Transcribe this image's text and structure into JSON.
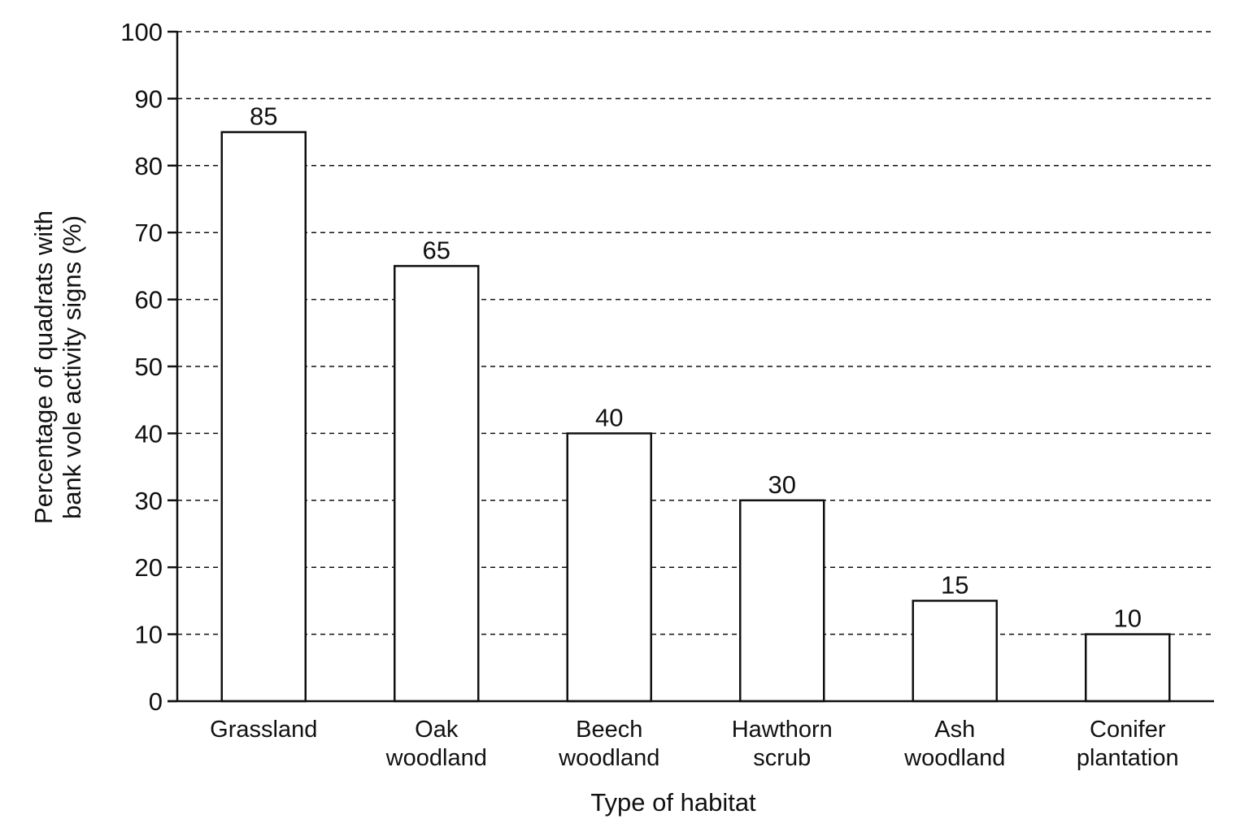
{
  "chart_data": {
    "type": "bar",
    "categories": [
      [
        "Grassland"
      ],
      [
        "Oak",
        "woodland"
      ],
      [
        "Beech",
        "woodland"
      ],
      [
        "Hawthorn",
        "scrub"
      ],
      [
        "Ash",
        "woodland"
      ],
      [
        "Conifer",
        "plantation"
      ]
    ],
    "values": [
      85,
      65,
      40,
      30,
      15,
      10
    ],
    "data_labels": [
      "85",
      "65",
      "40",
      "30",
      "15",
      "10"
    ],
    "xlabel": "Type of habitat",
    "ylabel": [
      "Percentage of quadrats with",
      "bank vole activity signs (%)"
    ],
    "ylim": [
      0,
      100
    ],
    "yticks": [
      0,
      10,
      20,
      30,
      40,
      50,
      60,
      70,
      80,
      90,
      100
    ],
    "grid": "horizontal dashed",
    "colors": {
      "bar_fill": "#ffffff",
      "bar_stroke": "#111111",
      "grid": "#111111",
      "axis": "#111111"
    }
  }
}
